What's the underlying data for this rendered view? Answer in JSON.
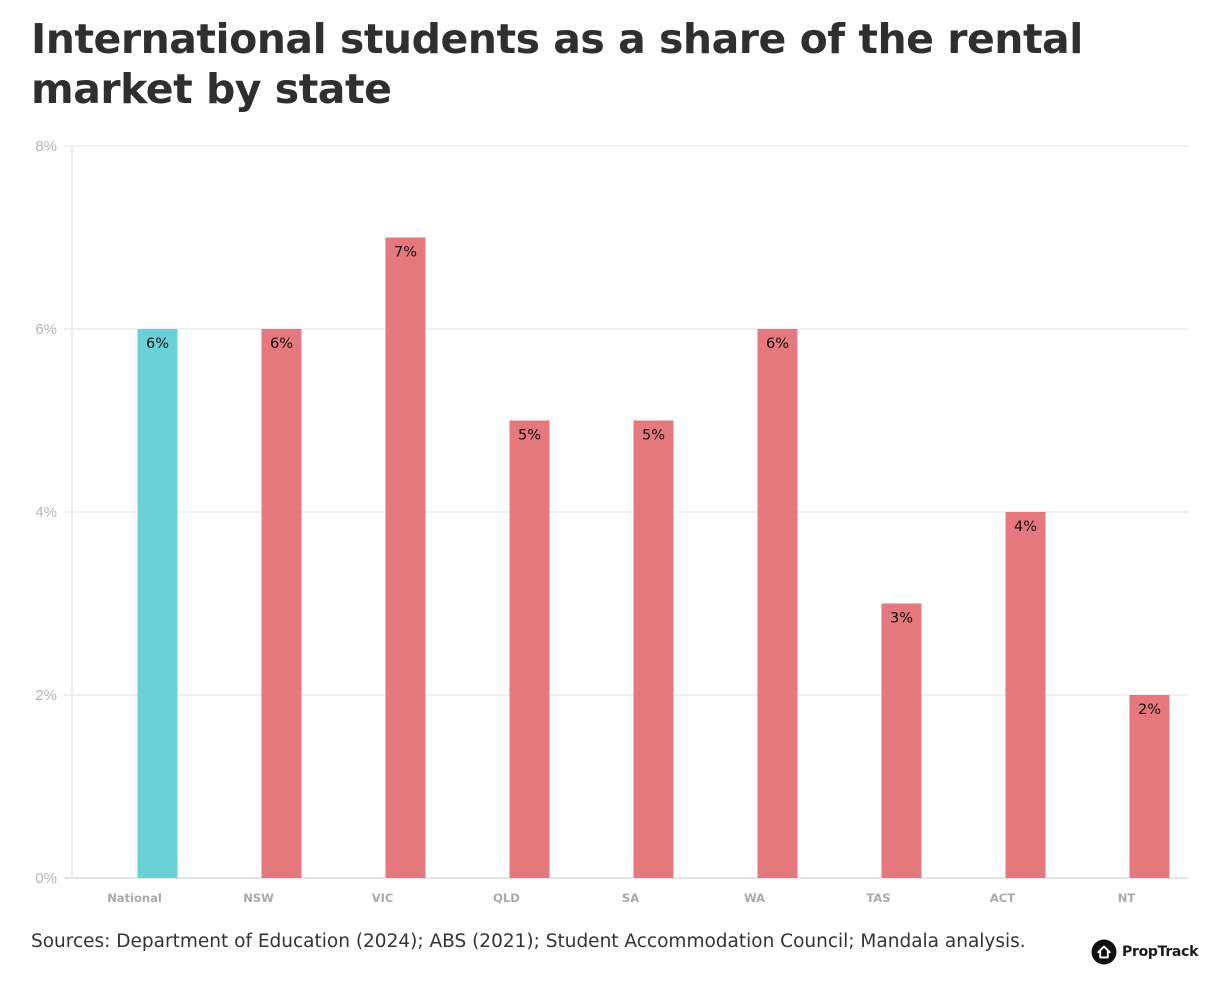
{
  "title": "International students as a share of the rental market by state",
  "source": "Sources: Department of Education (2024); ABS (2021); Student Accommodation Council; Mandala analysis.",
  "brand": {
    "name": "PropTrack",
    "icon": "house-icon"
  },
  "colors": {
    "highlight": "#69d0d5",
    "bar": "#e5787d",
    "grid": "#ececec"
  },
  "chart_data": {
    "type": "bar",
    "categories": [
      "National",
      "NSW",
      "VIC",
      "QLD",
      "SA",
      "WA",
      "TAS",
      "ACT",
      "NT"
    ],
    "values": [
      6,
      6,
      7,
      5,
      5,
      6,
      3,
      4,
      2
    ],
    "data_labels": [
      "6%",
      "6%",
      "7%",
      "5%",
      "5%",
      "6%",
      "3%",
      "4%",
      "2%"
    ],
    "highlight": [
      "National"
    ],
    "ylim": [
      0,
      8
    ],
    "yticks": [
      0,
      2,
      4,
      6,
      8
    ],
    "ytick_labels": [
      "0%",
      "2%",
      "4%",
      "6%",
      "8%"
    ],
    "grid": true,
    "title": "International students as a share of the rental market by state",
    "xlabel": "",
    "ylabel": ""
  }
}
